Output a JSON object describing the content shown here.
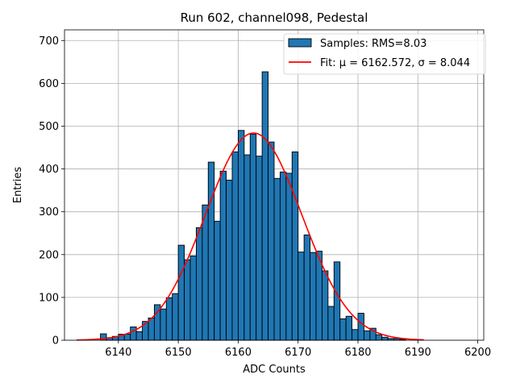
{
  "chart_data": {
    "type": "bar",
    "title": "Run 602, channel098, Pedestal",
    "xlabel": "ADC Counts",
    "ylabel": "Entries",
    "xlim": [
      6131,
      6201
    ],
    "ylim": [
      0,
      725
    ],
    "xticks": [
      6140,
      6150,
      6160,
      6170,
      6180,
      6190,
      6200
    ],
    "yticks": [
      0,
      100,
      200,
      300,
      400,
      500,
      600,
      700
    ],
    "grid": true,
    "legend_position": "top-right",
    "histogram": {
      "name": "Samples: RMS=8.03",
      "color": "#1f77b4",
      "bin_width": 1,
      "bin_starts": [
        6137,
        6138,
        6139,
        6140,
        6141,
        6142,
        6143,
        6144,
        6145,
        6146,
        6147,
        6148,
        6149,
        6150,
        6151,
        6152,
        6153,
        6154,
        6155,
        6156,
        6157,
        6158,
        6159,
        6160,
        6161,
        6162,
        6163,
        6164,
        6165,
        6166,
        6167,
        6168,
        6169,
        6170,
        6171,
        6172,
        6173,
        6174,
        6175,
        6176,
        6177,
        6178,
        6179,
        6180,
        6181,
        6182,
        6183,
        6184,
        6185,
        6186,
        6187
      ],
      "counts": [
        15,
        6,
        9,
        14,
        14,
        31,
        20,
        44,
        52,
        83,
        73,
        99,
        109,
        222,
        188,
        197,
        263,
        316,
        416,
        278,
        395,
        374,
        440,
        490,
        433,
        481,
        430,
        627,
        463,
        378,
        393,
        390,
        440,
        206,
        246,
        205,
        208,
        162,
        79,
        183,
        50,
        56,
        25,
        63,
        22,
        28,
        13,
        7,
        4,
        4,
        2
      ]
    },
    "fit": {
      "name": "Fit: μ = 6162.572, σ = 8.044",
      "color": "#ff0000",
      "mu": 6162.572,
      "sigma": 8.044,
      "amplitude": 484,
      "x_range": [
        6133,
        6191
      ]
    }
  }
}
